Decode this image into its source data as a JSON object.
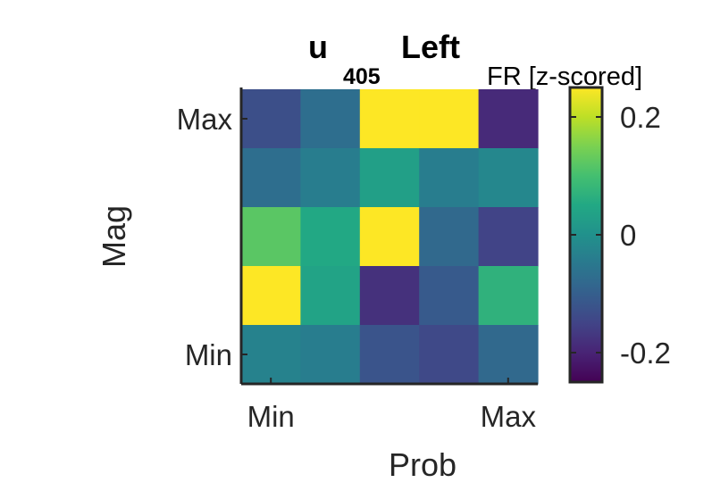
{
  "title": {
    "main": "u",
    "subscript": "405",
    "suffix": "Left"
  },
  "colorbar": {
    "label": "FR [z-scored]",
    "ticks": [
      0.2,
      0,
      -0.2
    ],
    "tick_labels": [
      "0.2",
      "0",
      "-0.2"
    ],
    "range": [
      -0.25,
      0.25
    ],
    "colormap": "viridis"
  },
  "chart_data": {
    "type": "heatmap",
    "xlabel": "Prob",
    "ylabel": "Mag",
    "x_tick_labels": [
      "Min",
      "Max"
    ],
    "y_tick_labels": [
      "Max",
      "Min"
    ],
    "rows_top_to_bottom": [
      [
        -0.13,
        -0.07,
        0.25,
        0.25,
        -0.19
      ],
      [
        -0.07,
        -0.04,
        0.03,
        -0.04,
        -0.02
      ],
      [
        0.12,
        0.05,
        0.25,
        -0.08,
        -0.15
      ],
      [
        0.25,
        0.04,
        -0.18,
        -0.11,
        0.07
      ],
      [
        -0.03,
        -0.04,
        -0.12,
        -0.14,
        -0.08
      ]
    ],
    "clim": [
      -0.25,
      0.25
    ]
  }
}
